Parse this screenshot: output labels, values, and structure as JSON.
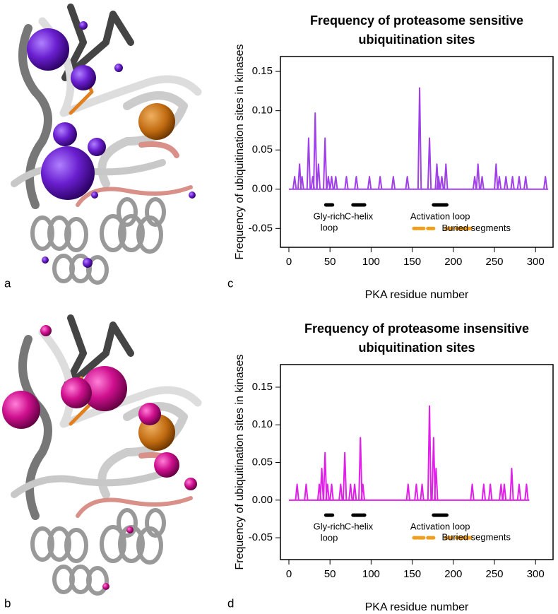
{
  "panel_labels": [
    "a",
    "b",
    "c",
    "d"
  ],
  "chart_data": [
    {
      "type": "line",
      "title": [
        "Frequency of proteasome sensitive",
        "ubiquitination sites"
      ],
      "xlabel": "PKA residue number",
      "ylabel": "Frequency of ubiquitination sites in kinases",
      "xlim": [
        -10.3,
        321.3
      ],
      "ylim": [
        -0.074,
        0.169
      ],
      "xticks": [
        0,
        50,
        100,
        150,
        200,
        250,
        300
      ],
      "yticks": [
        -0.05,
        {
          "value": 0,
          "label": "0.00"
        },
        0.05,
        {
          "value": 0.1,
          "label": "0.10"
        },
        0.15
      ],
      "color": "#a040e8",
      "x": [
        7,
        13,
        16,
        24,
        29,
        32,
        36,
        44,
        48,
        52,
        57,
        70,
        82,
        98,
        111,
        127,
        144,
        159,
        171,
        180,
        182,
        186,
        191,
        226,
        230,
        235,
        252,
        256,
        264,
        272,
        280,
        288,
        312
      ],
      "values": [
        0.016,
        0.032,
        0.016,
        0.065,
        0.016,
        0.097,
        0.032,
        0.065,
        0.016,
        0.016,
        0.016,
        0.016,
        0.016,
        0.016,
        0.016,
        0.016,
        0.016,
        0.129,
        0.065,
        0.032,
        0.016,
        0.016,
        0.032,
        0.016,
        0.032,
        0.016,
        0.032,
        0.016,
        0.016,
        0.016,
        0.016,
        0.016,
        0.016
      ],
      "regions": [
        {
          "label": [
            "Gly-rich",
            "loop"
          ],
          "start": 45,
          "end": 53,
          "y": -0.02,
          "color": "#000000"
        },
        {
          "label": [
            "C-helix"
          ],
          "start": 78,
          "end": 92,
          "y": -0.02,
          "color": "#000000"
        },
        {
          "label": [
            "Activation loop"
          ],
          "start": 176,
          "end": 192,
          "y": -0.02,
          "color": "#000000"
        }
      ],
      "buried": {
        "label": "Buried segments",
        "color": "#f0a020",
        "y": -0.05,
        "segments": [
          [
            152,
            156
          ],
          [
            158,
            164
          ],
          [
            169,
            176
          ],
          [
            191,
            198
          ],
          [
            204,
            221
          ]
        ]
      }
    },
    {
      "type": "line",
      "title": [
        "Frequency of proteasome insensitive",
        "ubiquitination sites"
      ],
      "xlabel": "PKA residue number",
      "ylabel": "Frequency of ubiquitination sites in kinases",
      "xlim": [
        -10.3,
        321.3
      ],
      "ylim": [
        -0.079,
        0.18
      ],
      "xticks": [
        0,
        50,
        100,
        150,
        200,
        250,
        300
      ],
      "yticks": [
        -0.05,
        {
          "value": 0,
          "label": "0.00"
        },
        0.05,
        {
          "value": 0.1,
          "label": "0.10"
        },
        0.15
      ],
      "color": "#e020e8",
      "x": [
        10,
        21,
        37,
        40,
        44,
        47,
        52,
        63,
        68,
        75,
        80,
        87,
        90,
        145,
        155,
        162,
        171,
        176,
        179,
        223,
        237,
        245,
        258,
        262,
        271,
        280,
        289
      ],
      "values": [
        0.021,
        0.021,
        0.021,
        0.042,
        0.063,
        0.021,
        0.021,
        0.021,
        0.063,
        0.021,
        0.021,
        0.083,
        0.021,
        0.021,
        0.021,
        0.021,
        0.125,
        0.083,
        0.042,
        0.021,
        0.021,
        0.021,
        0.021,
        0.021,
        0.042,
        0.021,
        0.021
      ],
      "regions": [
        {
          "label": [
            "Gly-rich",
            "loop"
          ],
          "start": 45,
          "end": 53,
          "y": -0.02,
          "color": "#000000"
        },
        {
          "label": [
            "C-helix"
          ],
          "start": 78,
          "end": 92,
          "y": -0.02,
          "color": "#000000"
        },
        {
          "label": [
            "Activation loop"
          ],
          "start": 176,
          "end": 192,
          "y": -0.02,
          "color": "#000000"
        }
      ],
      "buried": {
        "label": "Buried segments",
        "color": "#f0a020",
        "y": -0.05,
        "segments": [
          [
            152,
            156
          ],
          [
            158,
            164
          ],
          [
            169,
            176
          ],
          [
            191,
            198
          ],
          [
            204,
            221
          ]
        ]
      }
    }
  ]
}
